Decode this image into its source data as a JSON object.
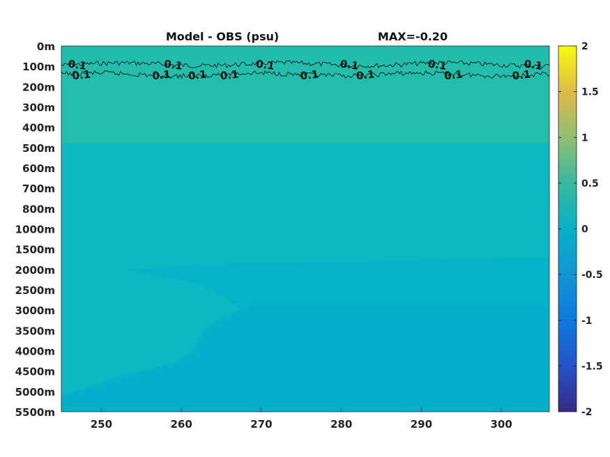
{
  "chart_data": {
    "type": "heatmap",
    "title_left": "Model - OBS (psu)",
    "title_right": "MAX=-0.20",
    "x_ticks": [
      "250",
      "260",
      "270",
      "280",
      "290",
      "300"
    ],
    "x_tick_values": [
      250,
      260,
      270,
      280,
      290,
      300
    ],
    "xlim": [
      245,
      306
    ],
    "y_ticks": [
      "0m",
      "100m",
      "200m",
      "300m",
      "400m",
      "500m",
      "600m",
      "700m",
      "800m",
      "1000m",
      "1500m",
      "2000m",
      "2500m",
      "3000m",
      "3500m",
      "4000m",
      "4500m",
      "5000m",
      "5500m"
    ],
    "colorbar": {
      "ticks": [
        "2",
        "1.5",
        "1",
        "0.5",
        "0",
        "-0.5",
        "-1",
        "-1.5",
        "-2"
      ],
      "tick_values": [
        2,
        1.5,
        1,
        0.5,
        0,
        -0.5,
        -1,
        -1.5,
        -2
      ],
      "range": [
        -2,
        2
      ],
      "colormap": "parula"
    },
    "field_colors": {
      "upper_layer": "#22bcae",
      "deep_layer": "#09b7c4",
      "bottom_tongue": "#04b1c9"
    },
    "contours": [
      {
        "value": "0.1",
        "label": "0.1",
        "label_x": [
          247,
          259,
          270.5,
          281,
          292,
          304
        ],
        "depth_level": 0.9
      },
      {
        "value": "0.1",
        "label": "0.1",
        "label_x": [
          247.5,
          257.5,
          262,
          266,
          276,
          283,
          294,
          302.5
        ],
        "depth_level": 1.4
      }
    ]
  }
}
